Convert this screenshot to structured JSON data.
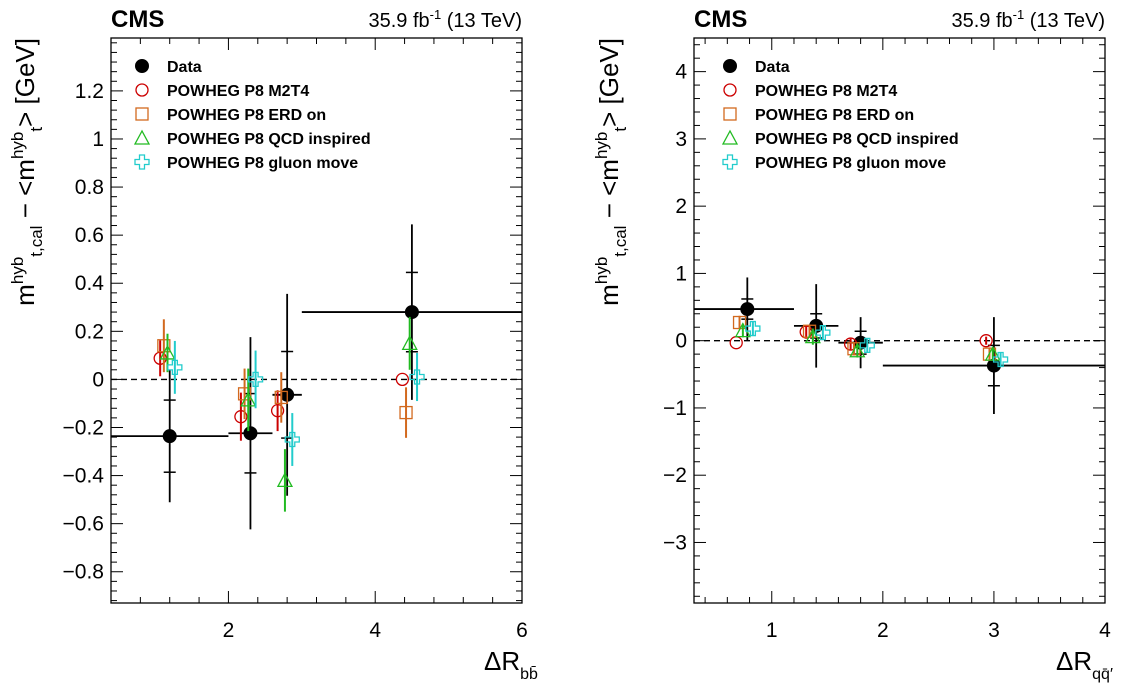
{
  "chart_data": [
    {
      "type": "scatter",
      "header": {
        "experiment": "CMS",
        "luminosity": "35.9 fb",
        "lumi_exp": "-1",
        "energy": "(13 TeV)"
      },
      "ylabel": {
        "main": "m",
        "sup": "hyb",
        "sub": "t,cal",
        "mid": " − <m",
        "sup2": "hyb",
        "sub2": "t",
        "tail": "> [GeV]"
      },
      "xlabel": {
        "main": "ΔR",
        "sub": "bb̄"
      },
      "xlim": [
        0.4,
        6.0
      ],
      "ylim": [
        -0.93,
        1.42
      ],
      "xticks": [
        2,
        4,
        6
      ],
      "yticks": [
        -0.8,
        -0.6,
        -0.4,
        -0.2,
        0,
        0.2,
        0.4,
        0.6,
        0.8,
        1,
        1.2
      ],
      "ytick_labels": [
        "−0.8",
        "−0.6",
        "−0.4",
        "−0.2",
        "0",
        "0.2",
        "0.4",
        "0.6",
        "0.8",
        "1",
        "1.2"
      ],
      "reference_line": 0,
      "legend_position": "top-left",
      "series": [
        {
          "name": "Data",
          "marker": "circle-filled",
          "color": "#000000",
          "points": [
            {
              "x": 1.2,
              "y": -0.236,
              "xlo": 0.4,
              "xhi": 2.0,
              "stat": 0.15,
              "tot": 0.275
            },
            {
              "x": 2.3,
              "y": -0.224,
              "xlo": 2.0,
              "xhi": 2.6,
              "stat": 0.165,
              "tot": 0.4
            },
            {
              "x": 2.8,
              "y": -0.064,
              "xlo": 2.6,
              "xhi": 3.0,
              "stat": 0.18,
              "tot": 0.42
            },
            {
              "x": 4.5,
              "y": 0.28,
              "xlo": 3.0,
              "xhi": 6.0,
              "stat": 0.165,
              "tot": 0.365
            }
          ]
        },
        {
          "name": "POWHEG P8 M2T4",
          "marker": "circle-open",
          "color": "#cc0000",
          "points": [
            {
              "x": 1.07,
              "y": 0.088,
              "err": 0.075
            },
            {
              "x": 2.17,
              "y": -0.155,
              "err": 0.1
            },
            {
              "x": 2.67,
              "y": -0.13,
              "err": 0.085
            },
            {
              "x": 4.37,
              "y": 0.0,
              "err": 0.0
            }
          ]
        },
        {
          "name": "POWHEG P8 ERD on",
          "marker": "square-open",
          "color": "#d2691e",
          "points": [
            {
              "x": 1.12,
              "y": 0.14,
              "err": 0.11
            },
            {
              "x": 2.22,
              "y": -0.06,
              "err": 0.105
            },
            {
              "x": 2.72,
              "y": -0.075,
              "err": 0.105
            },
            {
              "x": 4.42,
              "y": -0.138,
              "err": 0.105
            }
          ]
        },
        {
          "name": "POWHEG P8 QCD inspired",
          "marker": "triangle-open",
          "color": "#22bb22",
          "points": [
            {
              "x": 1.17,
              "y": 0.11,
              "err": 0.08
            },
            {
              "x": 2.27,
              "y": -0.085,
              "err": 0.13
            },
            {
              "x": 2.77,
              "y": -0.42,
              "err": 0.13
            },
            {
              "x": 4.47,
              "y": 0.15,
              "err": 0.11
            }
          ]
        },
        {
          "name": "POWHEG P8 gluon move",
          "marker": "cross-open",
          "color": "#22cccc",
          "points": [
            {
              "x": 1.27,
              "y": 0.05,
              "err": 0.11
            },
            {
              "x": 2.37,
              "y": 0.0,
              "err": 0.12
            },
            {
              "x": 2.87,
              "y": -0.25,
              "err": 0.11
            },
            {
              "x": 4.57,
              "y": 0.01,
              "err": 0.1
            }
          ]
        }
      ]
    },
    {
      "type": "scatter",
      "header": {
        "experiment": "CMS",
        "luminosity": "35.9 fb",
        "lumi_exp": "-1",
        "energy": "(13 TeV)"
      },
      "ylabel": {
        "main": "m",
        "sup": "hyb",
        "sub": "t,cal",
        "mid": " − <m",
        "sup2": "hyb",
        "sub2": "t",
        "tail": "> [GeV]"
      },
      "xlabel": {
        "main": "ΔR",
        "sub": "qq̄′"
      },
      "xlim": [
        0.3,
        4.0
      ],
      "ylim": [
        -3.9,
        4.5
      ],
      "xticks": [
        1,
        2,
        3,
        4
      ],
      "yticks": [
        -3,
        -2,
        -1,
        0,
        1,
        2,
        3,
        4
      ],
      "ytick_labels": [
        "−3",
        "−2",
        "−1",
        "0",
        "1",
        "2",
        "3",
        "4"
      ],
      "reference_line": 0,
      "legend_position": "top-left",
      "series": [
        {
          "name": "Data",
          "marker": "circle-filled",
          "color": "#000000",
          "points": [
            {
              "x": 0.78,
              "y": 0.47,
              "xlo": 0.3,
              "xhi": 1.2,
              "stat": 0.15,
              "tot": 0.47
            },
            {
              "x": 1.4,
              "y": 0.22,
              "xlo": 1.2,
              "xhi": 1.6,
              "stat": 0.18,
              "tot": 0.62
            },
            {
              "x": 1.8,
              "y": -0.03,
              "xlo": 1.6,
              "xhi": 2.0,
              "stat": 0.17,
              "tot": 0.38
            },
            {
              "x": 3.0,
              "y": -0.37,
              "xlo": 2.0,
              "xhi": 4.0,
              "stat": 0.3,
              "tot": 0.72
            }
          ]
        },
        {
          "name": "POWHEG P8 M2T4",
          "marker": "circle-open",
          "color": "#cc0000",
          "points": [
            {
              "x": 0.68,
              "y": -0.03,
              "err": 0.0
            },
            {
              "x": 1.31,
              "y": 0.13,
              "err": 0.1
            },
            {
              "x": 1.71,
              "y": -0.05,
              "err": 0.08
            },
            {
              "x": 2.93,
              "y": 0.0,
              "err": 0.06
            }
          ]
        },
        {
          "name": "POWHEG P8 ERD on",
          "marker": "square-open",
          "color": "#d2691e",
          "points": [
            {
              "x": 0.71,
              "y": 0.27,
              "err": 0.1
            },
            {
              "x": 1.34,
              "y": 0.14,
              "err": 0.1
            },
            {
              "x": 1.74,
              "y": -0.12,
              "err": 0.1
            },
            {
              "x": 2.96,
              "y": -0.2,
              "err": 0.1
            }
          ]
        },
        {
          "name": "POWHEG P8 QCD inspired",
          "marker": "triangle-open",
          "color": "#22bb22",
          "points": [
            {
              "x": 0.74,
              "y": 0.15,
              "err": 0.1
            },
            {
              "x": 1.37,
              "y": 0.06,
              "err": 0.12
            },
            {
              "x": 1.77,
              "y": -0.15,
              "err": 0.1
            },
            {
              "x": 2.99,
              "y": -0.2,
              "err": 0.1
            }
          ]
        },
        {
          "name": "POWHEG P8 gluon move",
          "marker": "cross-open",
          "color": "#22cccc",
          "points": [
            {
              "x": 0.83,
              "y": 0.18,
              "err": 0.1
            },
            {
              "x": 1.46,
              "y": 0.12,
              "err": 0.1
            },
            {
              "x": 1.86,
              "y": -0.07,
              "err": 0.1
            },
            {
              "x": 3.06,
              "y": -0.28,
              "err": 0.1
            }
          ]
        }
      ]
    }
  ]
}
